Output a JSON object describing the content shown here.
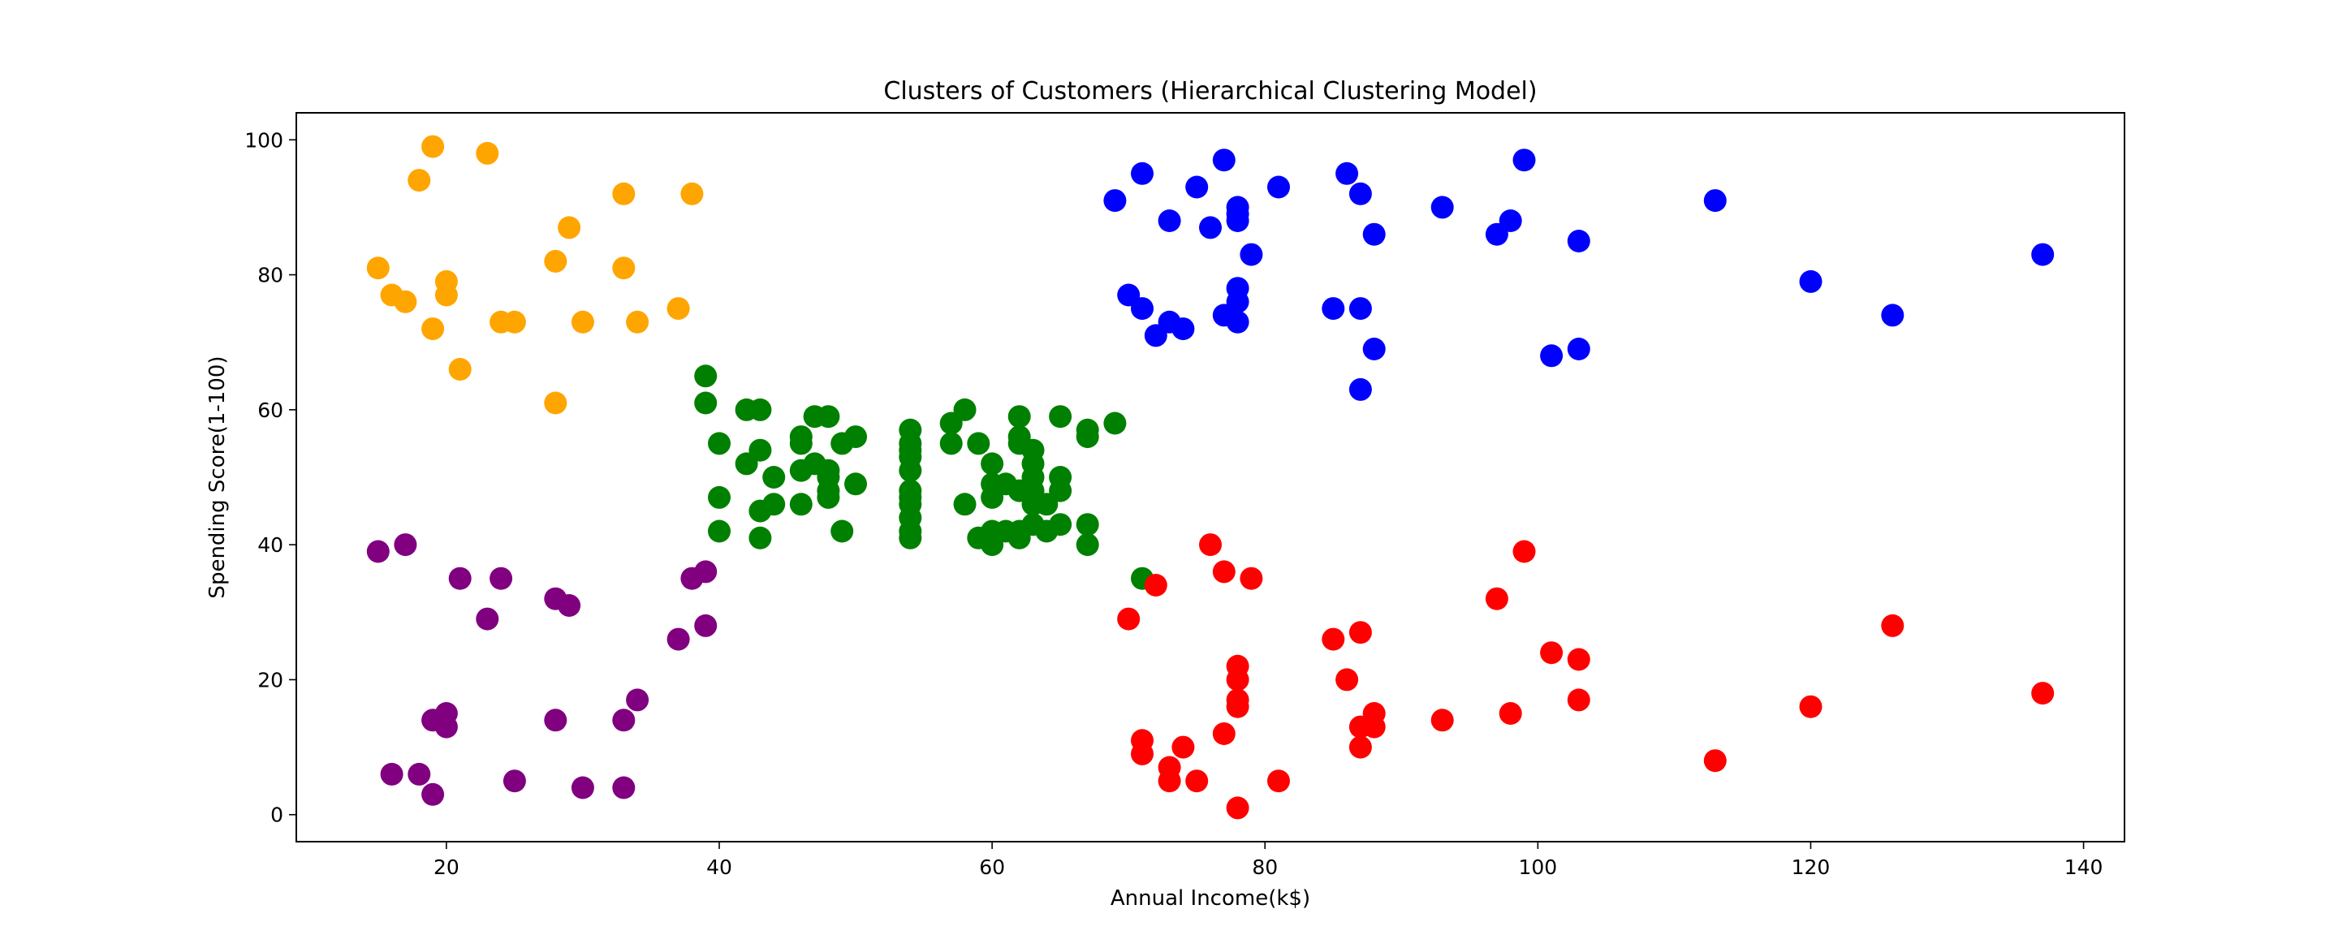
{
  "chart_data": {
    "type": "scatter",
    "title": "Clusters of Customers (Hierarchical Clustering Model)",
    "xlabel": "Annual Income(k$)",
    "ylabel": "Spending Score(1-100)",
    "xlim": [
      9,
      143
    ],
    "ylim": [
      -4,
      104
    ],
    "xticks": [
      20,
      40,
      60,
      80,
      100,
      120,
      140
    ],
    "yticks": [
      0,
      20,
      40,
      60,
      80,
      100
    ],
    "grid": false,
    "series": [
      {
        "color": "#ffa500",
        "points": [
          [
            15,
            81
          ],
          [
            16,
            77
          ],
          [
            17,
            76
          ],
          [
            18,
            94
          ],
          [
            19,
            99
          ],
          [
            19,
            72
          ],
          [
            20,
            79
          ],
          [
            20,
            77
          ],
          [
            21,
            66
          ],
          [
            23,
            98
          ],
          [
            24,
            73
          ],
          [
            25,
            73
          ],
          [
            28,
            82
          ],
          [
            28,
            61
          ],
          [
            29,
            87
          ],
          [
            30,
            73
          ],
          [
            33,
            92
          ],
          [
            33,
            81
          ],
          [
            34,
            73
          ],
          [
            37,
            75
          ],
          [
            38,
            92
          ]
        ]
      },
      {
        "color": "#800080",
        "points": [
          [
            15,
            39
          ],
          [
            16,
            6
          ],
          [
            17,
            40
          ],
          [
            18,
            6
          ],
          [
            19,
            14
          ],
          [
            19,
            3
          ],
          [
            20,
            15
          ],
          [
            20,
            13
          ],
          [
            21,
            35
          ],
          [
            23,
            29
          ],
          [
            24,
            35
          ],
          [
            25,
            5
          ],
          [
            28,
            32
          ],
          [
            28,
            14
          ],
          [
            29,
            31
          ],
          [
            30,
            4
          ],
          [
            33,
            14
          ],
          [
            33,
            4
          ],
          [
            34,
            17
          ],
          [
            37,
            26
          ],
          [
            38,
            35
          ],
          [
            39,
            36
          ],
          [
            39,
            28
          ]
        ]
      },
      {
        "color": "#008000",
        "points": [
          [
            39,
            65
          ],
          [
            39,
            61
          ],
          [
            40,
            55
          ],
          [
            40,
            47
          ],
          [
            40,
            42
          ],
          [
            42,
            60
          ],
          [
            42,
            52
          ],
          [
            43,
            60
          ],
          [
            43,
            54
          ],
          [
            43,
            45
          ],
          [
            43,
            41
          ],
          [
            44,
            50
          ],
          [
            44,
            46
          ],
          [
            46,
            56
          ],
          [
            46,
            55
          ],
          [
            46,
            51
          ],
          [
            46,
            46
          ],
          [
            47,
            59
          ],
          [
            47,
            52
          ],
          [
            48,
            59
          ],
          [
            48,
            51
          ],
          [
            48,
            50
          ],
          [
            48,
            48
          ],
          [
            48,
            47
          ],
          [
            49,
            55
          ],
          [
            49,
            42
          ],
          [
            50,
            56
          ],
          [
            50,
            49
          ],
          [
            54,
            57
          ],
          [
            54,
            55
          ],
          [
            54,
            54
          ],
          [
            54,
            53
          ],
          [
            54,
            51
          ],
          [
            54,
            48
          ],
          [
            54,
            47
          ],
          [
            54,
            46
          ],
          [
            54,
            44
          ],
          [
            54,
            42
          ],
          [
            54,
            41
          ],
          [
            57,
            58
          ],
          [
            57,
            55
          ],
          [
            58,
            60
          ],
          [
            58,
            46
          ],
          [
            59,
            55
          ],
          [
            59,
            41
          ],
          [
            60,
            52
          ],
          [
            60,
            49
          ],
          [
            60,
            47
          ],
          [
            60,
            42
          ],
          [
            60,
            40
          ],
          [
            61,
            49
          ],
          [
            61,
            42
          ],
          [
            62,
            59
          ],
          [
            62,
            56
          ],
          [
            62,
            55
          ],
          [
            62,
            48
          ],
          [
            62,
            42
          ],
          [
            62,
            41
          ],
          [
            63,
            54
          ],
          [
            63,
            52
          ],
          [
            63,
            50
          ],
          [
            63,
            48
          ],
          [
            63,
            46
          ],
          [
            63,
            43
          ],
          [
            64,
            46
          ],
          [
            64,
            42
          ],
          [
            65,
            59
          ],
          [
            65,
            50
          ],
          [
            65,
            48
          ],
          [
            65,
            43
          ],
          [
            67,
            57
          ],
          [
            67,
            56
          ],
          [
            67,
            43
          ],
          [
            67,
            40
          ],
          [
            69,
            58
          ],
          [
            71,
            35
          ]
        ]
      },
      {
        "color": "#0000ff",
        "points": [
          [
            69,
            91
          ],
          [
            70,
            77
          ],
          [
            71,
            95
          ],
          [
            71,
            75
          ],
          [
            72,
            71
          ],
          [
            73,
            88
          ],
          [
            73,
            73
          ],
          [
            74,
            72
          ],
          [
            75,
            93
          ],
          [
            76,
            87
          ],
          [
            77,
            97
          ],
          [
            77,
            74
          ],
          [
            78,
            90
          ],
          [
            78,
            89
          ],
          [
            78,
            88
          ],
          [
            78,
            78
          ],
          [
            78,
            76
          ],
          [
            78,
            73
          ],
          [
            79,
            83
          ],
          [
            81,
            93
          ],
          [
            85,
            75
          ],
          [
            86,
            95
          ],
          [
            87,
            92
          ],
          [
            87,
            75
          ],
          [
            87,
            63
          ],
          [
            88,
            86
          ],
          [
            88,
            69
          ],
          [
            93,
            90
          ],
          [
            97,
            86
          ],
          [
            98,
            88
          ],
          [
            99,
            97
          ],
          [
            101,
            68
          ],
          [
            103,
            85
          ],
          [
            103,
            69
          ],
          [
            113,
            91
          ],
          [
            120,
            79
          ],
          [
            126,
            74
          ],
          [
            137,
            83
          ]
        ]
      },
      {
        "color": "#ff0000",
        "points": [
          [
            70,
            29
          ],
          [
            71,
            11
          ],
          [
            71,
            9
          ],
          [
            72,
            34
          ],
          [
            73,
            7
          ],
          [
            73,
            5
          ],
          [
            74,
            10
          ],
          [
            75,
            5
          ],
          [
            76,
            40
          ],
          [
            77,
            36
          ],
          [
            77,
            12
          ],
          [
            78,
            22
          ],
          [
            78,
            20
          ],
          [
            78,
            17
          ],
          [
            78,
            16
          ],
          [
            78,
            1
          ],
          [
            79,
            35
          ],
          [
            81,
            5
          ],
          [
            85,
            26
          ],
          [
            86,
            20
          ],
          [
            87,
            27
          ],
          [
            87,
            13
          ],
          [
            87,
            10
          ],
          [
            88,
            15
          ],
          [
            88,
            13
          ],
          [
            93,
            14
          ],
          [
            97,
            32
          ],
          [
            98,
            15
          ],
          [
            99,
            39
          ],
          [
            101,
            24
          ],
          [
            103,
            23
          ],
          [
            103,
            17
          ],
          [
            113,
            8
          ],
          [
            120,
            16
          ],
          [
            126,
            28
          ],
          [
            137,
            18
          ]
        ]
      }
    ]
  }
}
